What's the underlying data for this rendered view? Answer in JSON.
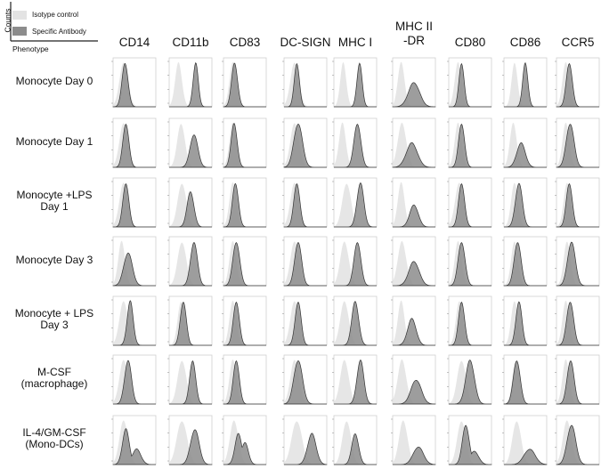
{
  "legend": {
    "isotype_label": "Isotype control",
    "specific_label": "Specific Antibody",
    "y_axis_label": "Counts",
    "x_axis_label": "Phenotype",
    "isotype_color": "#e3e3e3",
    "specific_color": "#8c8c8c"
  },
  "chart_data": {
    "type": "histogram-grid",
    "columns": [
      "CD14",
      "CD11b",
      "CD83",
      "DC-SIGN",
      "MHC I",
      "MHC II\n-DR",
      "CD80",
      "CD86",
      "CCR5"
    ],
    "rows": [
      "Monocyte Day 0",
      "Monocyte Day 1",
      "Monocyte +LPS\nDay 1",
      "Monocyte Day 3",
      "Monocyte + LPS\nDay 3",
      "M-CSF\n(macrophage)",
      "IL-4/GM-CSF\n(Mono-DCs)"
    ],
    "series": [
      {
        "name": "Isotype control",
        "color": "#e3e3e3"
      },
      {
        "name": "Specific Antibody",
        "color": "#8c8c8c"
      }
    ],
    "peaks": [
      [
        {
          "iso": [
            0.25,
            0.1
          ],
          "spec": [
            [
              0.28,
              0.07,
              1.0
            ]
          ]
        },
        {
          "iso": [
            0.22,
            0.08
          ],
          "spec": [
            [
              0.62,
              0.06,
              1.0
            ]
          ]
        },
        {
          "iso": [
            0.22,
            0.08
          ],
          "spec": [
            [
              0.26,
              0.07,
              1.0
            ]
          ]
        },
        {
          "iso": [
            0.25,
            0.1
          ],
          "spec": [
            [
              0.3,
              0.06,
              1.0
            ]
          ]
        },
        {
          "iso": [
            0.22,
            0.07
          ],
          "spec": [
            [
              0.6,
              0.06,
              1.0
            ]
          ]
        },
        {
          "iso": [
            0.2,
            0.08
          ],
          "spec": [
            [
              0.5,
              0.13,
              0.55
            ]
          ]
        },
        {
          "iso": [
            0.22,
            0.08
          ],
          "spec": [
            [
              0.3,
              0.06,
              1.0
            ]
          ]
        },
        {
          "iso": [
            0.25,
            0.07
          ],
          "spec": [
            [
              0.5,
              0.06,
              1.0
            ]
          ]
        },
        {
          "iso": [
            0.22,
            0.08
          ],
          "spec": [
            [
              0.3,
              0.07,
              1.0
            ]
          ]
        }
      ],
      [
        {
          "iso": [
            0.25,
            0.1
          ],
          "spec": [
            [
              0.3,
              0.07,
              1.0
            ]
          ]
        },
        {
          "iso": [
            0.28,
            0.09
          ],
          "spec": [
            [
              0.58,
              0.09,
              0.75
            ]
          ]
        },
        {
          "iso": [
            0.22,
            0.08
          ],
          "spec": [
            [
              0.25,
              0.07,
              1.0
            ]
          ]
        },
        {
          "iso": [
            0.25,
            0.1
          ],
          "spec": [
            [
              0.33,
              0.1,
              1.0
            ]
          ]
        },
        {
          "iso": [
            0.2,
            0.08
          ],
          "spec": [
            [
              0.55,
              0.08,
              1.0
            ]
          ]
        },
        {
          "iso": [
            0.22,
            0.1
          ],
          "spec": [
            [
              0.45,
              0.13,
              0.55
            ]
          ]
        },
        {
          "iso": [
            0.22,
            0.08
          ],
          "spec": [
            [
              0.3,
              0.07,
              1.0
            ]
          ]
        },
        {
          "iso": [
            0.22,
            0.08
          ],
          "spec": [
            [
              0.4,
              0.1,
              0.55
            ]
          ]
        },
        {
          "iso": [
            0.22,
            0.08
          ],
          "spec": [
            [
              0.32,
              0.09,
              1.0
            ]
          ]
        }
      ],
      [
        {
          "iso": [
            0.25,
            0.1
          ],
          "spec": [
            [
              0.3,
              0.07,
              1.0
            ]
          ]
        },
        {
          "iso": [
            0.3,
            0.1
          ],
          "spec": [
            [
              0.5,
              0.08,
              0.8
            ]
          ]
        },
        {
          "iso": [
            0.22,
            0.08
          ],
          "spec": [
            [
              0.28,
              0.07,
              1.0
            ]
          ]
        },
        {
          "iso": [
            0.25,
            0.1
          ],
          "spec": [
            [
              0.3,
              0.07,
              1.0
            ]
          ]
        },
        {
          "iso": [
            0.3,
            0.1
          ],
          "spec": [
            [
              0.62,
              0.08,
              1.0
            ]
          ]
        },
        {
          "iso": [
            0.2,
            0.08
          ],
          "spec": [
            [
              0.5,
              0.1,
              0.5
            ]
          ]
        },
        {
          "iso": [
            0.25,
            0.1
          ],
          "spec": [
            [
              0.3,
              0.07,
              1.0
            ]
          ]
        },
        {
          "iso": [
            0.25,
            0.08
          ],
          "spec": [
            [
              0.35,
              0.08,
              1.0
            ]
          ]
        },
        {
          "iso": [
            0.25,
            0.08
          ],
          "spec": [
            [
              0.3,
              0.07,
              1.0
            ]
          ]
        }
      ],
      [
        {
          "iso": [
            0.2,
            0.08
          ],
          "spec": [
            [
              0.35,
              0.1,
              0.75
            ]
          ]
        },
        {
          "iso": [
            0.3,
            0.1
          ],
          "spec": [
            [
              0.58,
              0.08,
              1.0
            ]
          ]
        },
        {
          "iso": [
            0.22,
            0.08
          ],
          "spec": [
            [
              0.3,
              0.08,
              1.0
            ]
          ]
        },
        {
          "iso": [
            0.25,
            0.1
          ],
          "spec": [
            [
              0.33,
              0.08,
              1.0
            ]
          ]
        },
        {
          "iso": [
            0.25,
            0.1
          ],
          "spec": [
            [
              0.55,
              0.08,
              1.0
            ]
          ]
        },
        {
          "iso": [
            0.22,
            0.1
          ],
          "spec": [
            [
              0.5,
              0.12,
              0.55
            ]
          ]
        },
        {
          "iso": [
            0.22,
            0.08
          ],
          "spec": [
            [
              0.3,
              0.08,
              1.0
            ]
          ]
        },
        {
          "iso": [
            0.25,
            0.08
          ],
          "spec": [
            [
              0.32,
              0.08,
              1.0
            ]
          ]
        },
        {
          "iso": [
            0.25,
            0.08
          ],
          "spec": [
            [
              0.35,
              0.09,
              1.0
            ]
          ]
        }
      ],
      [
        {
          "iso": [
            0.25,
            0.1
          ],
          "spec": [
            [
              0.4,
              0.07,
              1.0
            ]
          ]
        },
        {
          "iso": [
            0.28,
            0.08
          ],
          "spec": [
            [
              0.33,
              0.07,
              1.0
            ]
          ]
        },
        {
          "iso": [
            0.22,
            0.08
          ],
          "spec": [
            [
              0.3,
              0.07,
              1.0
            ]
          ]
        },
        {
          "iso": [
            0.25,
            0.1
          ],
          "spec": [
            [
              0.33,
              0.07,
              1.0
            ]
          ]
        },
        {
          "iso": [
            0.25,
            0.1
          ],
          "spec": [
            [
              0.5,
              0.08,
              1.0
            ]
          ]
        },
        {
          "iso": [
            0.2,
            0.08
          ],
          "spec": [
            [
              0.45,
              0.1,
              0.6
            ]
          ]
        },
        {
          "iso": [
            0.25,
            0.08
          ],
          "spec": [
            [
              0.3,
              0.07,
              1.0
            ]
          ]
        },
        {
          "iso": [
            0.25,
            0.08
          ],
          "spec": [
            [
              0.35,
              0.07,
              1.0
            ]
          ]
        },
        {
          "iso": [
            0.22,
            0.08
          ],
          "spec": [
            [
              0.32,
              0.08,
              1.0
            ]
          ]
        }
      ],
      [
        {
          "iso": [
            0.25,
            0.1
          ],
          "spec": [
            [
              0.35,
              0.08,
              1.0
            ]
          ]
        },
        {
          "iso": [
            0.3,
            0.1
          ],
          "spec": [
            [
              0.55,
              0.07,
              1.0
            ]
          ]
        },
        {
          "iso": [
            0.22,
            0.08
          ],
          "spec": [
            [
              0.3,
              0.07,
              1.0
            ]
          ]
        },
        {
          "iso": [
            0.25,
            0.1
          ],
          "spec": [
            [
              0.33,
              0.1,
              1.0
            ]
          ]
        },
        {
          "iso": [
            0.25,
            0.1
          ],
          "spec": [
            [
              0.62,
              0.08,
              1.0
            ]
          ]
        },
        {
          "iso": [
            0.22,
            0.1
          ],
          "spec": [
            [
              0.55,
              0.12,
              0.55
            ]
          ]
        },
        {
          "iso": [
            0.3,
            0.1
          ],
          "spec": [
            [
              0.5,
              0.1,
              1.0
            ]
          ]
        },
        {
          "iso": [
            0.28,
            0.08
          ],
          "spec": [
            [
              0.3,
              0.08,
              1.0
            ]
          ]
        },
        {
          "iso": [
            0.22,
            0.08
          ],
          "spec": [
            [
              0.33,
              0.08,
              1.0
            ]
          ]
        }
      ],
      [
        {
          "iso": [
            0.25,
            0.1
          ],
          "spec": [
            [
              0.3,
              0.08,
              0.8
            ],
            [
              0.55,
              0.1,
              0.35
            ]
          ]
        },
        {
          "iso": [
            0.3,
            0.12
          ],
          "spec": [
            [
              0.6,
              0.1,
              0.8
            ]
          ]
        },
        {
          "iso": [
            0.25,
            0.1
          ],
          "spec": [
            [
              0.35,
              0.08,
              0.7
            ],
            [
              0.5,
              0.08,
              0.5
            ]
          ]
        },
        {
          "iso": [
            0.3,
            0.12
          ],
          "spec": [
            [
              0.65,
              0.1,
              0.7
            ]
          ]
        },
        {
          "iso": [
            0.3,
            0.1
          ],
          "spec": [
            [
              0.5,
              0.08,
              0.7
            ]
          ]
        },
        {
          "iso": [
            0.25,
            0.1
          ],
          "spec": [
            [
              0.6,
              0.12,
              0.4
            ]
          ]
        },
        {
          "iso": [
            0.3,
            0.1
          ],
          "spec": [
            [
              0.4,
              0.08,
              0.9
            ],
            [
              0.6,
              0.1,
              0.3
            ]
          ]
        },
        {
          "iso": [
            0.3,
            0.1
          ],
          "spec": [
            [
              0.6,
              0.13,
              0.35
            ]
          ]
        },
        {
          "iso": [
            0.25,
            0.1
          ],
          "spec": [
            [
              0.35,
              0.1,
              0.9
            ]
          ]
        }
      ]
    ]
  }
}
